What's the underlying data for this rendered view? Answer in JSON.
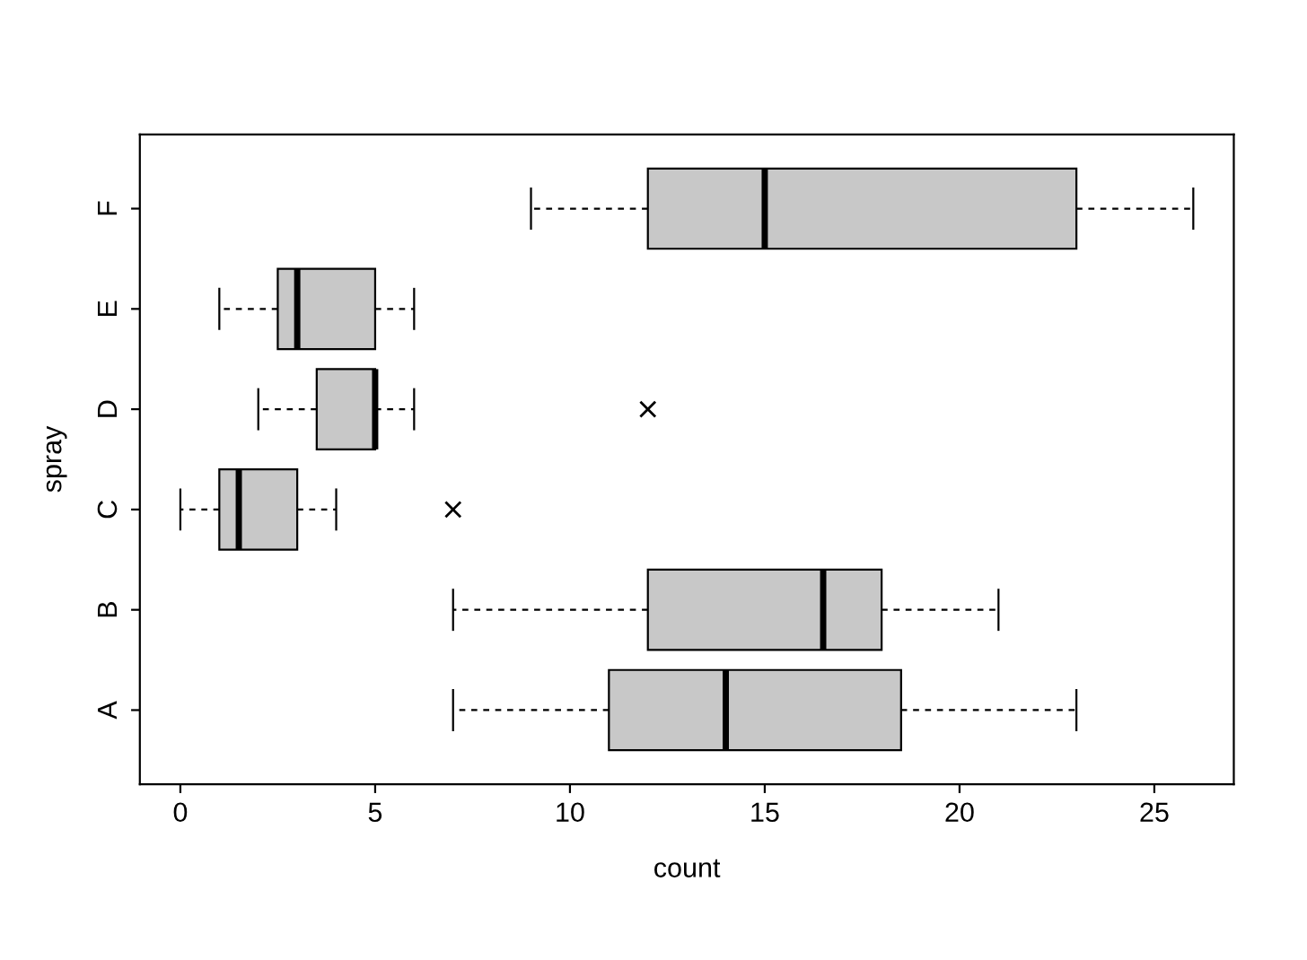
{
  "chart_data": {
    "type": "box",
    "orientation": "horizontal",
    "xlabel": "count",
    "ylabel": "spray",
    "categories": [
      "F",
      "E",
      "D",
      "C",
      "B",
      "A"
    ],
    "color": "#c8c8c8",
    "boxes": [
      {
        "low": 9,
        "q1": 12,
        "median": 15,
        "q3": 23,
        "high": 26
      },
      {
        "low": 1,
        "q1": 2.5,
        "median": 3,
        "q3": 5,
        "high": 6
      },
      {
        "low": 2,
        "q1": 3.5,
        "median": 5,
        "q3": 5,
        "high": 6,
        "outliers": [
          12
        ]
      },
      {
        "low": 0,
        "q1": 1,
        "median": 1.5,
        "q3": 3,
        "high": 4,
        "outliers": [
          7
        ]
      },
      {
        "low": 7,
        "q1": 12,
        "median": 16.5,
        "q3": 18,
        "high": 21
      },
      {
        "low": 7,
        "q1": 11,
        "median": 14,
        "q3": 18.5,
        "high": 23
      }
    ],
    "xlim": [
      -1.04,
      27.04
    ],
    "xticks": [
      0,
      5,
      10,
      15,
      20,
      25
    ],
    "grid": false,
    "legend": false
  }
}
